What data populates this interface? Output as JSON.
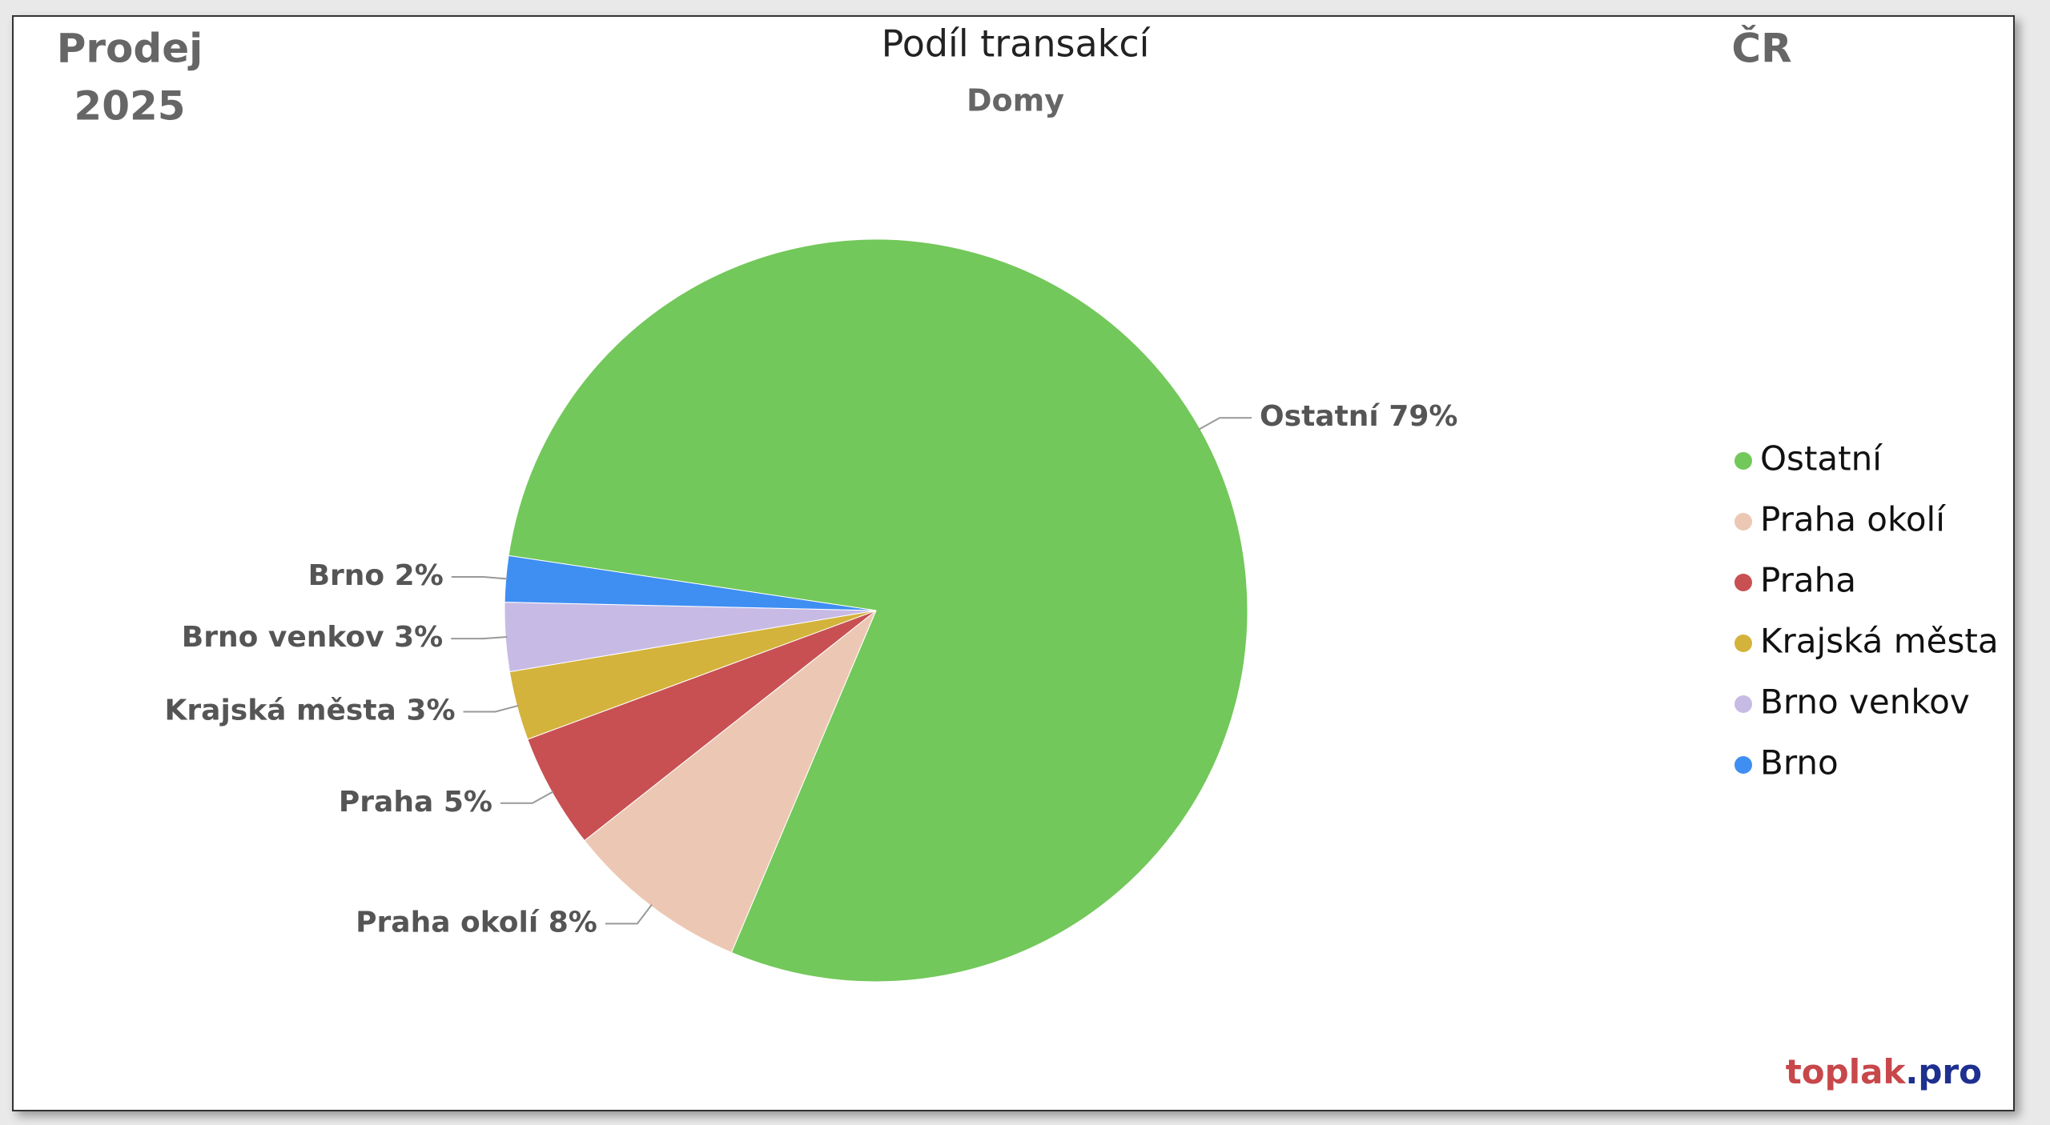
{
  "chart_data": {
    "type": "pie",
    "title": "Podíl transakcí",
    "subtitle": "Domy",
    "corner_labels": [
      "Prodej",
      "2025"
    ],
    "region": "ČR",
    "source": [
      "toplak",
      ".pro"
    ],
    "categories": [
      "Ostatní",
      "Praha okolí",
      "Praha",
      "Krajská města",
      "Brno venkov",
      "Brno"
    ],
    "values": [
      79,
      8,
      5,
      3,
      3,
      2
    ],
    "value_labels": [
      "79%",
      "8%",
      "5%",
      "3%",
      "3%",
      "2%"
    ],
    "colors": [
      "#72c85a",
      "#ecc8b4",
      "#c85052",
      "#d4b33c",
      "#c7bbe5",
      "#3f8ef2"
    ],
    "legend": "right"
  }
}
